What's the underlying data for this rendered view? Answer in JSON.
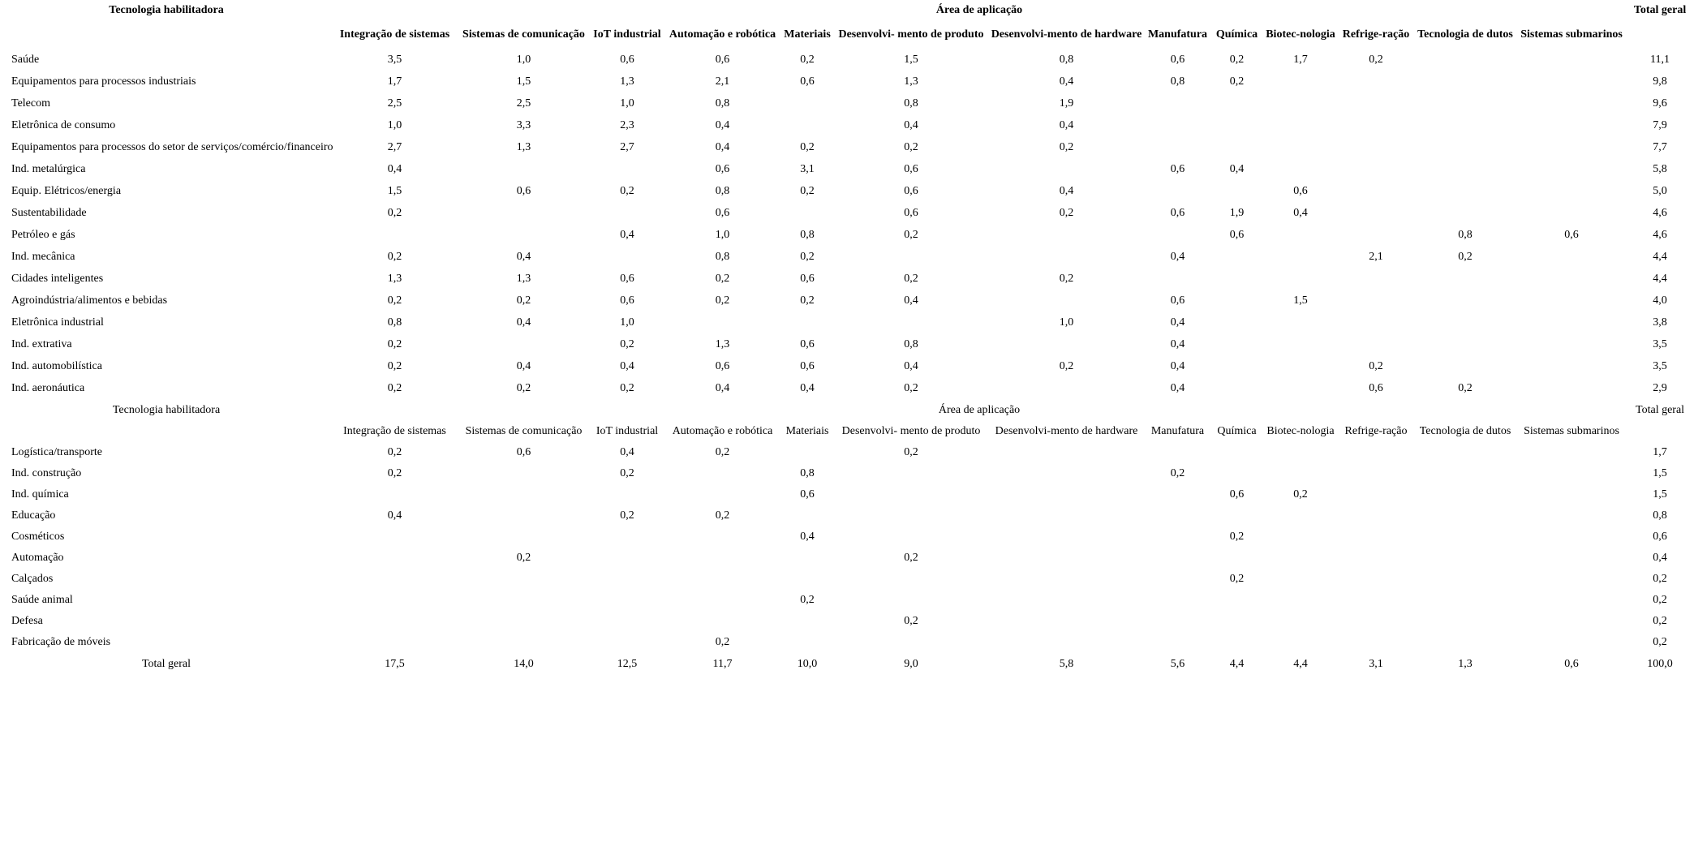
{
  "page": {
    "background_color": "#ffffff",
    "text_color": "#000000"
  },
  "table": {
    "corner_label": "Tecnologia habilitadora",
    "area_label": "Área de aplicação",
    "total_label": "Total geral",
    "columns": [
      "Integração de sistemas",
      "Sistemas de comunicação",
      "IoT industrial",
      "Automação e robótica",
      "Materiais",
      "Desenvolvi- mento de produto",
      "Desenvolvi-mento de hardware",
      "Manufatura",
      "Química",
      "Biotec-nologia",
      "Refrige-ração",
      "Tecnologia de dutos",
      "Sistemas submarinos"
    ],
    "block1_rows": [
      {
        "label": "Saúde",
        "values": [
          "3,5",
          "1,0",
          "0,6",
          "0,6",
          "0,2",
          "1,5",
          "0,8",
          "0,6",
          "0,2",
          "1,7",
          "0,2",
          "",
          ""
        ],
        "total": "11,1"
      },
      {
        "label": "Equipamentos para processos industriais",
        "values": [
          "1,7",
          "1,5",
          "1,3",
          "2,1",
          "0,6",
          "1,3",
          "0,4",
          "0,8",
          "0,2",
          "",
          "",
          "",
          ""
        ],
        "total": "9,8"
      },
      {
        "label": "Telecom",
        "values": [
          "2,5",
          "2,5",
          "1,0",
          "0,8",
          "",
          "0,8",
          "1,9",
          "",
          "",
          "",
          "",
          "",
          ""
        ],
        "total": "9,6"
      },
      {
        "label": "Eletrônica de consumo",
        "values": [
          "1,0",
          "3,3",
          "2,3",
          "0,4",
          "",
          "0,4",
          "0,4",
          "",
          "",
          "",
          "",
          "",
          ""
        ],
        "total": "7,9"
      },
      {
        "label": "Equipamentos para processos do setor de serviços/comércio/financeiro",
        "values": [
          "2,7",
          "1,3",
          "2,7",
          "0,4",
          "0,2",
          "0,2",
          "0,2",
          "",
          "",
          "",
          "",
          "",
          ""
        ],
        "total": "7,7"
      },
      {
        "label": "Ind. metalúrgica",
        "values": [
          "0,4",
          "",
          "",
          "0,6",
          "3,1",
          "0,6",
          "",
          "0,6",
          "0,4",
          "",
          "",
          "",
          ""
        ],
        "total": "5,8"
      },
      {
        "label": "Equip. Elétricos/energia",
        "values": [
          "1,5",
          "0,6",
          "0,2",
          "0,8",
          "0,2",
          "0,6",
          "0,4",
          "",
          "",
          "0,6",
          "",
          "",
          ""
        ],
        "total": "5,0"
      },
      {
        "label": "Sustentabilidade",
        "values": [
          "0,2",
          "",
          "",
          "0,6",
          "",
          "0,6",
          "0,2",
          "0,6",
          "1,9",
          "0,4",
          "",
          "",
          ""
        ],
        "total": "4,6"
      },
      {
        "label": "Petróleo e gás",
        "values": [
          "",
          "",
          "0,4",
          "1,0",
          "0,8",
          "0,2",
          "",
          "",
          "0,6",
          "",
          "",
          "0,8",
          "0,6"
        ],
        "total": "4,6"
      },
      {
        "label": "Ind. mecânica",
        "values": [
          "0,2",
          "0,4",
          "",
          "0,8",
          "0,2",
          "",
          "",
          "0,4",
          "",
          "",
          "2,1",
          "0,2",
          ""
        ],
        "total": "4,4"
      },
      {
        "label": "Cidades inteligentes",
        "values": [
          "1,3",
          "1,3",
          "0,6",
          "0,2",
          "0,6",
          "0,2",
          "0,2",
          "",
          "",
          "",
          "",
          "",
          ""
        ],
        "total": "4,4"
      },
      {
        "label": "Agroindústria/alimentos e bebidas",
        "values": [
          "0,2",
          "0,2",
          "0,6",
          "0,2",
          "0,2",
          "0,4",
          "",
          "0,6",
          "",
          "1,5",
          "",
          "",
          ""
        ],
        "total": "4,0"
      },
      {
        "label": "Eletrônica industrial",
        "values": [
          "0,8",
          "0,4",
          "1,0",
          "",
          "",
          "",
          "1,0",
          "0,4",
          "",
          "",
          "",
          "",
          ""
        ],
        "total": "3,8"
      },
      {
        "label": "Ind. extrativa",
        "values": [
          "0,2",
          "",
          "0,2",
          "1,3",
          "0,6",
          "0,8",
          "",
          "0,4",
          "",
          "",
          "",
          "",
          ""
        ],
        "total": "3,5"
      },
      {
        "label": "Ind. automobilística",
        "values": [
          "0,2",
          "0,4",
          "0,4",
          "0,6",
          "0,6",
          "0,4",
          "0,2",
          "0,4",
          "",
          "",
          "0,2",
          "",
          ""
        ],
        "total": "3,5"
      },
      {
        "label": "Ind. aeronáutica",
        "values": [
          "0,2",
          "0,2",
          "0,2",
          "0,4",
          "0,4",
          "0,2",
          "",
          "0,4",
          "",
          "",
          "0,6",
          "0,2",
          ""
        ],
        "total": "2,9"
      }
    ],
    "block2_rows": [
      {
        "label": "Logística/transporte",
        "values": [
          "0,2",
          "0,6",
          "0,4",
          "0,2",
          "",
          "0,2",
          "",
          "",
          "",
          "",
          "",
          "",
          ""
        ],
        "total": "1,7"
      },
      {
        "label": "Ind. construção",
        "values": [
          "0,2",
          "",
          "0,2",
          "",
          "0,8",
          "",
          "",
          "0,2",
          "",
          "",
          "",
          "",
          ""
        ],
        "total": "1,5"
      },
      {
        "label": "Ind. química",
        "values": [
          "",
          "",
          "",
          "",
          "0,6",
          "",
          "",
          "",
          "0,6",
          "0,2",
          "",
          "",
          ""
        ],
        "total": "1,5"
      },
      {
        "label": "Educação",
        "values": [
          "0,4",
          "",
          "0,2",
          "0,2",
          "",
          "",
          "",
          "",
          "",
          "",
          "",
          "",
          ""
        ],
        "total": "0,8"
      },
      {
        "label": "Cosméticos",
        "values": [
          "",
          "",
          "",
          "",
          "0,4",
          "",
          "",
          "",
          "0,2",
          "",
          "",
          "",
          ""
        ],
        "total": "0,6"
      },
      {
        "label": "Automação",
        "values": [
          "",
          "0,2",
          "",
          "",
          "",
          "0,2",
          "",
          "",
          "",
          "",
          "",
          "",
          ""
        ],
        "total": "0,4"
      },
      {
        "label": "Calçados",
        "values": [
          "",
          "",
          "",
          "",
          "",
          "",
          "",
          "",
          "0,2",
          "",
          "",
          "",
          ""
        ],
        "total": "0,2"
      },
      {
        "label": "Saúde animal",
        "values": [
          "",
          "",
          "",
          "",
          "0,2",
          "",
          "",
          "",
          "",
          "",
          "",
          "",
          ""
        ],
        "total": "0,2"
      },
      {
        "label": "Defesa",
        "values": [
          "",
          "",
          "",
          "",
          "",
          "0,2",
          "",
          "",
          "",
          "",
          "",
          "",
          ""
        ],
        "total": "0,2"
      },
      {
        "label": "Fabricação de móveis",
        "values": [
          "",
          "",
          "",
          "0,2",
          "",
          "",
          "",
          "",
          "",
          "",
          "",
          "",
          ""
        ],
        "total": "0,2"
      }
    ],
    "grand_total_row": {
      "label": "Total geral",
      "values": [
        "17,5",
        "14,0",
        "12,5",
        "11,7",
        "10,0",
        "9,0",
        "5,8",
        "5,6",
        "4,4",
        "4,4",
        "3,1",
        "1,3",
        "0,6"
      ],
      "total": "100,0"
    }
  }
}
